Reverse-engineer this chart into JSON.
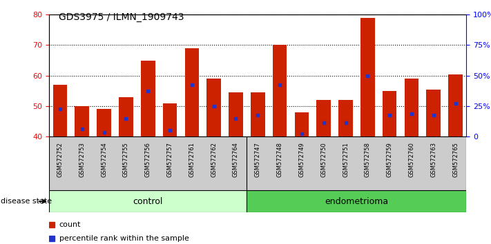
{
  "title": "GDS3975 / ILMN_1909743",
  "categories": [
    "GSM572752",
    "GSM572753",
    "GSM572754",
    "GSM572755",
    "GSM572756",
    "GSM572757",
    "GSM572761",
    "GSM572762",
    "GSM572764",
    "GSM572747",
    "GSM572748",
    "GSM572749",
    "GSM572750",
    "GSM572751",
    "GSM572758",
    "GSM572759",
    "GSM572760",
    "GSM572763",
    "GSM572765"
  ],
  "bar_values": [
    57,
    50,
    49,
    53,
    65,
    51,
    69,
    59,
    54.5,
    54.5,
    70,
    48,
    52,
    52,
    79,
    55,
    59,
    55.5,
    60.5
  ],
  "blue_markers": [
    49,
    42.5,
    41.5,
    46,
    55,
    42,
    57,
    50,
    46,
    47,
    57,
    41,
    44.5,
    44.5,
    60,
    47,
    47.5,
    47,
    51
  ],
  "y_min": 40,
  "y_max": 80,
  "y_ticks_left": [
    40,
    50,
    60,
    70,
    80
  ],
  "y_ticks_right": [
    0,
    25,
    50,
    75,
    100
  ],
  "bar_color": "#cc2200",
  "blue_color": "#2233cc",
  "n_control": 9,
  "n_endometrioma": 10,
  "control_color": "#ccffcc",
  "endometrioma_color": "#55cc55",
  "tick_bg_color": "#cccccc",
  "label_count": "count",
  "label_percentile": "percentile rank within the sample",
  "disease_state_label": "disease state"
}
